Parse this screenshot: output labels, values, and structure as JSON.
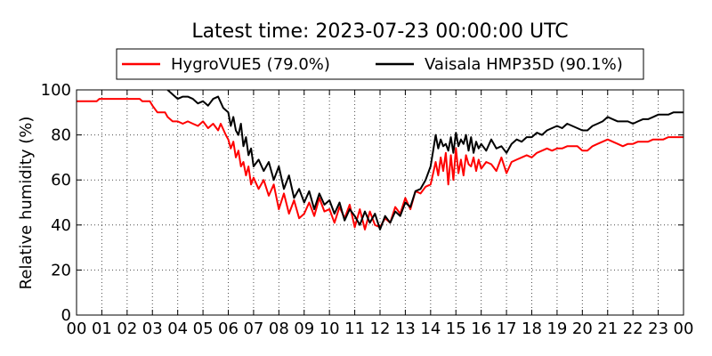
{
  "chart_data": {
    "type": "line",
    "title": "Latest time: 2023-07-23 00:00:00 UTC",
    "xlabel": "",
    "ylabel": "Relative humidity (%)",
    "xlim": [
      0,
      24
    ],
    "ylim": [
      0,
      100
    ],
    "x_ticks": [
      "00",
      "01",
      "02",
      "03",
      "04",
      "05",
      "06",
      "07",
      "08",
      "09",
      "10",
      "11",
      "12",
      "13",
      "14",
      "15",
      "16",
      "17",
      "18",
      "19",
      "20",
      "21",
      "22",
      "23",
      "00"
    ],
    "y_ticks": [
      0,
      20,
      40,
      60,
      80,
      100
    ],
    "grid": true,
    "legend_position": "top",
    "series": [
      {
        "name": "HygroVUE5 (79.0%)",
        "color": "#ff0000",
        "x": [
          0.0,
          0.5,
          0.8,
          0.9,
          1.5,
          2.0,
          2.5,
          2.6,
          2.9,
          3.0,
          3.2,
          3.5,
          3.6,
          3.8,
          4.0,
          4.2,
          4.4,
          4.6,
          4.8,
          5.0,
          5.2,
          5.4,
          5.6,
          5.7,
          5.9,
          6.0,
          6.1,
          6.2,
          6.3,
          6.4,
          6.5,
          6.6,
          6.7,
          6.8,
          6.9,
          7.0,
          7.2,
          7.4,
          7.6,
          7.8,
          8.0,
          8.2,
          8.4,
          8.6,
          8.8,
          9.0,
          9.2,
          9.4,
          9.6,
          9.8,
          10.0,
          10.2,
          10.4,
          10.6,
          10.8,
          11.0,
          11.2,
          11.4,
          11.6,
          11.8,
          12.0,
          12.2,
          12.4,
          12.6,
          12.8,
          13.0,
          13.2,
          13.4,
          13.6,
          13.8,
          14.0,
          14.1,
          14.2,
          14.3,
          14.4,
          14.5,
          14.6,
          14.7,
          14.8,
          14.9,
          15.0,
          15.1,
          15.2,
          15.3,
          15.4,
          15.5,
          15.6,
          15.7,
          15.8,
          15.9,
          16.0,
          16.2,
          16.4,
          16.6,
          16.8,
          17.0,
          17.2,
          17.4,
          17.6,
          17.8,
          18.0,
          18.2,
          18.4,
          18.6,
          18.8,
          19.0,
          19.2,
          19.4,
          19.6,
          19.8,
          20.0,
          20.2,
          20.4,
          20.6,
          20.8,
          21.0,
          21.2,
          21.4,
          21.6,
          21.8,
          22.0,
          22.2,
          22.4,
          22.6,
          22.8,
          23.0,
          23.2,
          23.4,
          23.6,
          23.8,
          24.0
        ],
        "values": [
          95,
          95,
          95,
          96,
          96,
          96,
          96,
          95,
          95,
          93,
          90,
          90,
          88,
          86,
          86,
          85,
          86,
          85,
          84,
          86,
          83,
          85,
          82,
          85,
          80,
          78,
          74,
          77,
          70,
          73,
          66,
          68,
          62,
          66,
          58,
          61,
          56,
          60,
          53,
          58,
          47,
          54,
          45,
          51,
          43,
          45,
          50,
          44,
          52,
          46,
          47,
          41,
          48,
          43,
          49,
          39,
          47,
          38,
          46,
          40,
          39,
          43,
          41,
          48,
          45,
          52,
          47,
          55,
          54,
          57,
          58,
          63,
          68,
          62,
          70,
          64,
          72,
          58,
          71,
          60,
          74,
          63,
          69,
          62,
          71,
          67,
          66,
          70,
          64,
          69,
          65,
          68,
          67,
          64,
          70,
          63,
          68,
          69,
          70,
          71,
          70,
          72,
          73,
          74,
          73,
          74,
          74,
          75,
          75,
          75,
          73,
          73,
          75,
          76,
          77,
          78,
          77,
          76,
          75,
          76,
          76,
          77,
          77,
          77,
          78,
          78,
          78,
          79,
          79,
          79,
          79
        ]
      },
      {
        "name": "Vaisala HMP35D (90.1%)",
        "color": "#000000",
        "x": [
          3.6,
          3.8,
          4.0,
          4.2,
          4.4,
          4.6,
          4.8,
          5.0,
          5.2,
          5.4,
          5.6,
          5.8,
          6.0,
          6.1,
          6.2,
          6.3,
          6.4,
          6.5,
          6.6,
          6.7,
          6.8,
          6.9,
          7.0,
          7.2,
          7.4,
          7.6,
          7.8,
          8.0,
          8.2,
          8.4,
          8.6,
          8.8,
          9.0,
          9.2,
          9.4,
          9.6,
          9.8,
          10.0,
          10.2,
          10.4,
          10.6,
          10.8,
          11.0,
          11.2,
          11.4,
          11.6,
          11.8,
          12.0,
          12.2,
          12.4,
          12.6,
          12.8,
          13.0,
          13.2,
          13.4,
          13.6,
          13.8,
          14.0,
          14.1,
          14.2,
          14.3,
          14.4,
          14.5,
          14.6,
          14.7,
          14.8,
          14.9,
          15.0,
          15.1,
          15.2,
          15.3,
          15.4,
          15.5,
          15.6,
          15.7,
          15.8,
          15.9,
          16.0,
          16.2,
          16.4,
          16.6,
          16.8,
          17.0,
          17.2,
          17.4,
          17.6,
          17.8,
          18.0,
          18.2,
          18.4,
          18.6,
          18.8,
          19.0,
          19.2,
          19.4,
          19.6,
          19.8,
          20.0,
          20.2,
          20.4,
          20.6,
          20.8,
          21.0,
          21.2,
          21.4,
          21.6,
          21.8,
          22.0,
          22.2,
          22.4,
          22.6,
          22.8,
          23.0,
          23.2,
          23.4,
          23.6,
          23.8,
          24.0
        ],
        "values": [
          100,
          98,
          96,
          97,
          97,
          96,
          94,
          95,
          93,
          96,
          97,
          92,
          90,
          84,
          88,
          82,
          80,
          85,
          75,
          79,
          71,
          74,
          66,
          69,
          64,
          68,
          60,
          66,
          56,
          62,
          52,
          56,
          50,
          55,
          47,
          54,
          49,
          51,
          45,
          50,
          42,
          47,
          44,
          40,
          46,
          41,
          45,
          38,
          44,
          41,
          46,
          44,
          50,
          48,
          55,
          56,
          60,
          66,
          73,
          80,
          74,
          78,
          75,
          76,
          73,
          79,
          72,
          81,
          75,
          78,
          76,
          80,
          73,
          79,
          72,
          77,
          74,
          76,
          73,
          78,
          74,
          75,
          72,
          76,
          78,
          77,
          79,
          79,
          81,
          80,
          82,
          83,
          84,
          83,
          85,
          84,
          83,
          82,
          82,
          84,
          85,
          86,
          88,
          87,
          86,
          86,
          86,
          85,
          86,
          87,
          87,
          88,
          89,
          89,
          89,
          90,
          90,
          90
        ]
      }
    ]
  }
}
